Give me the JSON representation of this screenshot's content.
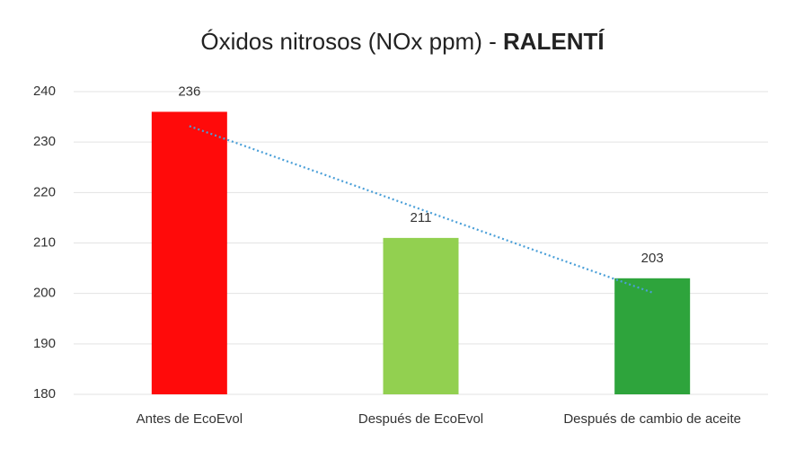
{
  "chart_data": {
    "type": "bar",
    "title": "Óxidos nitrosos (NOx ppm) -",
    "title_emphasis": "RALENTÍ",
    "categories": [
      "Antes de EcoEvol",
      "Después de EcoEvol",
      "Después de cambio de aceite"
    ],
    "values": [
      236,
      211,
      203
    ],
    "colors": [
      "#ff0a0a",
      "#92d050",
      "#2ea43c"
    ],
    "ylim": [
      180,
      240
    ],
    "yticks": [
      180,
      190,
      200,
      210,
      220,
      230,
      240
    ],
    "grid": true,
    "trendline": {
      "type": "linear",
      "color": "#4a9fd8",
      "style": "dotted"
    }
  }
}
